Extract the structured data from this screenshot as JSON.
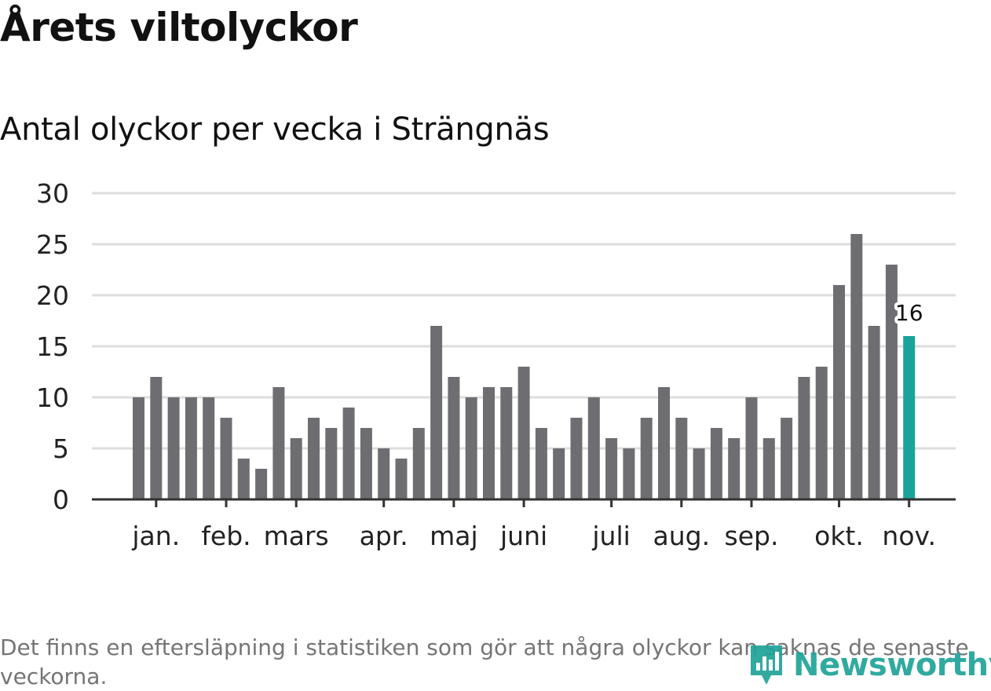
{
  "title": "Årets viltolyckor",
  "subtitle": "Antal olyckor per vecka i Strängnäs",
  "note": "Det finns en eftersläpning i statistiken som gör att några olyckor kan saknas de senaste veckorna.",
  "brand": {
    "name": "Newsworthy",
    "color": "#1fa398",
    "icon": "newsworthy-logo-icon"
  },
  "colors": {
    "bar": "#6e6d72",
    "highlight": "#1aa39a",
    "grid": "#dddddd",
    "axis": "#333333"
  },
  "chart_data": {
    "type": "bar",
    "title": "Antal olyckor per vecka i Strängnäs",
    "xlabel": "",
    "ylabel": "",
    "ylim": [
      0,
      30
    ],
    "yticks": [
      0,
      5,
      10,
      15,
      20,
      25,
      30
    ],
    "grid": true,
    "month_labels": [
      {
        "label": "jan.",
        "week": 1
      },
      {
        "label": "feb.",
        "week": 5
      },
      {
        "label": "mars",
        "week": 9
      },
      {
        "label": "apr.",
        "week": 14
      },
      {
        "label": "maj",
        "week": 18
      },
      {
        "label": "juni",
        "week": 22
      },
      {
        "label": "juli",
        "week": 27
      },
      {
        "label": "aug.",
        "week": 31
      },
      {
        "label": "sep.",
        "week": 35
      },
      {
        "label": "okt.",
        "week": 40
      },
      {
        "label": "nov.",
        "week": 44
      }
    ],
    "series": [
      {
        "name": "Antal olyckor",
        "values": [
          10,
          12,
          10,
          10,
          10,
          8,
          4,
          3,
          11,
          6,
          8,
          7,
          9,
          7,
          5,
          4,
          7,
          17,
          12,
          10,
          11,
          11,
          13,
          7,
          5,
          8,
          10,
          6,
          5,
          8,
          11,
          8,
          5,
          7,
          6,
          10,
          6,
          8,
          12,
          13,
          21,
          26,
          17,
          23,
          16
        ]
      }
    ],
    "highlight": {
      "index": 44,
      "label": "16"
    }
  }
}
